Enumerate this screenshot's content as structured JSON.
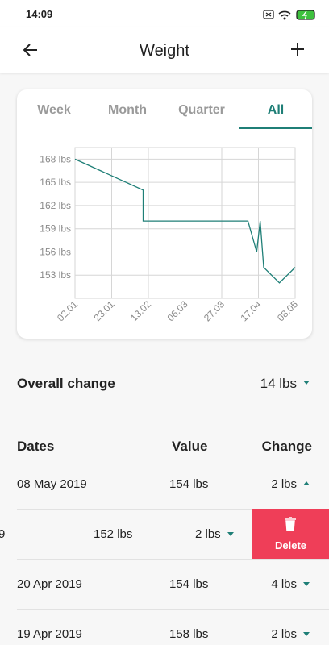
{
  "status_bar": {
    "time": "14:09"
  },
  "header": {
    "title": "Weight"
  },
  "tabs": [
    "Week",
    "Month",
    "Quarter",
    "All"
  ],
  "chart_data": {
    "type": "line",
    "x": [
      2,
      41,
      41,
      101,
      106,
      108,
      110,
      119,
      128
    ],
    "series": [
      {
        "name": "Weight",
        "color": "#1f7f77",
        "values": [
          168,
          164,
          160,
          160,
          156,
          160,
          154,
          152,
          154
        ]
      }
    ],
    "xlim": [
      2,
      128
    ],
    "xticks": [
      {
        "value": 2,
        "label": "02.01"
      },
      {
        "value": 23,
        "label": "23.01"
      },
      {
        "value": 44,
        "label": "13.02"
      },
      {
        "value": 65,
        "label": "06.03"
      },
      {
        "value": 86,
        "label": "27.03"
      },
      {
        "value": 107,
        "label": "17.04"
      },
      {
        "value": 128,
        "label": "08.05"
      }
    ],
    "ylim": [
      150,
      169.5
    ],
    "yticks": [
      {
        "value": 168,
        "label": "168 lbs"
      },
      {
        "value": 165,
        "label": "165 lbs"
      },
      {
        "value": 162,
        "label": "162 lbs"
      },
      {
        "value": 159,
        "label": "159 lbs"
      },
      {
        "value": 156,
        "label": "156 lbs"
      },
      {
        "value": 153,
        "label": "153 lbs"
      }
    ],
    "grid": true
  },
  "overall": {
    "label": "Overall change",
    "value": "14 lbs"
  },
  "table": {
    "headers": [
      "Dates",
      "Value",
      "Change"
    ],
    "rows": [
      [
        "08 May 2019",
        "154 lbs",
        "2 lbs"
      ],
      [
        "9",
        "152 lbs",
        "2 lbs"
      ],
      [
        "20 Apr 2019",
        "154 lbs",
        "4 lbs"
      ],
      [
        "19 Apr 2019",
        "158 lbs",
        "2 lbs"
      ]
    ]
  },
  "delete_label": "Delete"
}
